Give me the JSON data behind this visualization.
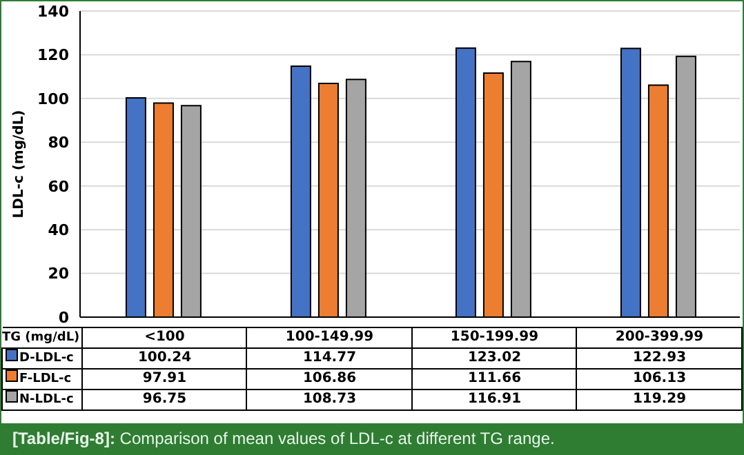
{
  "chart_data": {
    "type": "bar",
    "ylabel": "LDL-c (mg/dL)",
    "xlabel": "TG (mg/dL)",
    "categories": [
      "<100",
      "100-149.99",
      "150-199.99",
      "200-399.99"
    ],
    "series": [
      {
        "name": "D-LDL-c",
        "color": "#4472c4",
        "values": [
          100.24,
          114.77,
          123.02,
          122.93
        ]
      },
      {
        "name": "F-LDL-c",
        "color": "#ed7d31",
        "values": [
          97.91,
          106.86,
          111.66,
          106.13
        ]
      },
      {
        "name": "N-LDL-c",
        "color": "#a5a5a5",
        "values": [
          96.75,
          108.73,
          116.91,
          119.29
        ]
      }
    ],
    "ylim": [
      0,
      140
    ],
    "yticks": [
      0,
      20,
      40,
      60,
      80,
      100,
      120,
      140
    ],
    "grid": "y",
    "legend": "bottom",
    "data_labels": true,
    "annotations": [
      "[Table/Fig-8]: Comparison of mean values of LDL-c at different TG range."
    ]
  }
}
